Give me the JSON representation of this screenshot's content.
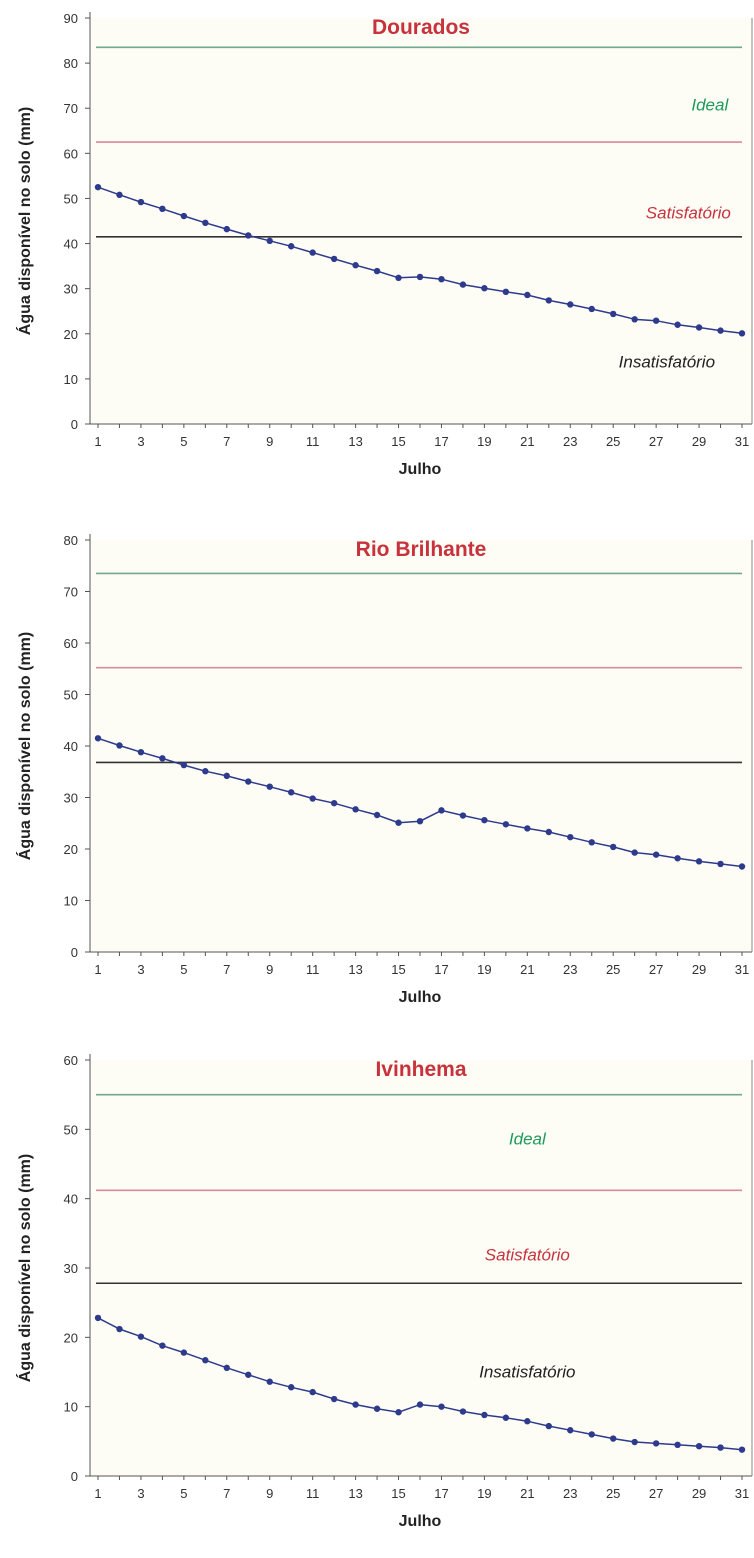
{
  "colors": {
    "title": "#c8323c",
    "ideal_line": "#6fa88a",
    "ideal_text": "#1e9a5a",
    "satisfactory_line": "#d88a9a",
    "satisfactory_text": "#c8323c",
    "insatisfactory_line": "#333333",
    "insatisfactory_text": "#222222",
    "series": "#2e3a8c",
    "plot_background": "#fdfdf6"
  },
  "chart_data": [
    {
      "type": "line",
      "title": "Dourados",
      "xlabel": "Julho",
      "ylabel": "Água disponível no solo (mm)",
      "xlim": [
        1,
        31
      ],
      "ylim": [
        0,
        90
      ],
      "yticks": [
        0,
        10,
        20,
        30,
        40,
        50,
        60,
        70,
        80,
        90
      ],
      "xticks": [
        1,
        3,
        5,
        7,
        9,
        11,
        13,
        15,
        17,
        19,
        21,
        23,
        25,
        27,
        29,
        31
      ],
      "thresholds": [
        {
          "key": "ideal",
          "value": 83.5
        },
        {
          "key": "satisfactory",
          "value": 62.5
        },
        {
          "key": "insatisfactory",
          "value": 41.5
        }
      ],
      "zone_labels": [
        {
          "key": "ideal",
          "text": "Ideal",
          "x": 29.5,
          "y": 69.5
        },
        {
          "key": "satisfactory",
          "text": "Satisfatório",
          "x": 28.5,
          "y": 45.5
        },
        {
          "key": "insatisfactory",
          "text": "Insatisfatório",
          "x": 27.5,
          "y": 12.5
        }
      ],
      "x": [
        1,
        2,
        3,
        4,
        5,
        6,
        7,
        8,
        9,
        10,
        11,
        12,
        13,
        14,
        15,
        16,
        17,
        18,
        19,
        20,
        21,
        22,
        23,
        24,
        25,
        26,
        27,
        28,
        29,
        30,
        31
      ],
      "values": [
        52.5,
        50.8,
        49.2,
        47.7,
        46.1,
        44.6,
        43.2,
        41.8,
        40.6,
        39.4,
        38.0,
        36.6,
        35.2,
        33.9,
        32.4,
        32.6,
        32.1,
        30.9,
        30.1,
        29.3,
        28.6,
        27.4,
        26.5,
        25.5,
        24.4,
        23.2,
        22.9,
        22.0,
        21.4,
        20.7,
        20.1
      ]
    },
    {
      "type": "line",
      "title": "Rio Brilhante",
      "xlabel": "Julho",
      "ylabel": "Água disponível no solo (mm)",
      "xlim": [
        1,
        31
      ],
      "ylim": [
        0,
        80
      ],
      "yticks": [
        0,
        10,
        20,
        30,
        40,
        50,
        60,
        70,
        80
      ],
      "xticks": [
        1,
        3,
        5,
        7,
        9,
        11,
        13,
        15,
        17,
        19,
        21,
        23,
        25,
        27,
        29,
        31
      ],
      "thresholds": [
        {
          "key": "ideal",
          "value": 73.5
        },
        {
          "key": "satisfactory",
          "value": 55.2
        },
        {
          "key": "insatisfactory",
          "value": 36.8
        }
      ],
      "zone_labels": [],
      "x": [
        1,
        2,
        3,
        4,
        5,
        6,
        7,
        8,
        9,
        10,
        11,
        12,
        13,
        14,
        15,
        16,
        17,
        18,
        19,
        20,
        21,
        22,
        23,
        24,
        25,
        26,
        27,
        28,
        29,
        30,
        31
      ],
      "values": [
        41.5,
        40.1,
        38.8,
        37.6,
        36.3,
        35.1,
        34.2,
        33.1,
        32.1,
        31.0,
        29.8,
        28.9,
        27.7,
        26.6,
        25.1,
        25.4,
        27.5,
        26.5,
        25.6,
        24.8,
        24.0,
        23.3,
        22.3,
        21.3,
        20.4,
        19.3,
        18.9,
        18.2,
        17.6,
        17.1,
        16.6
      ]
    },
    {
      "type": "line",
      "title": "Ivinhema",
      "xlabel": "Julho",
      "ylabel": "Água disponível no solo (mm)",
      "xlim": [
        1,
        31
      ],
      "ylim": [
        0,
        60
      ],
      "yticks": [
        0,
        10,
        20,
        30,
        40,
        50,
        60
      ],
      "xticks": [
        1,
        3,
        5,
        7,
        9,
        11,
        13,
        15,
        17,
        19,
        21,
        23,
        25,
        27,
        29,
        31
      ],
      "thresholds": [
        {
          "key": "ideal",
          "value": 55.0
        },
        {
          "key": "satisfactory",
          "value": 41.2
        },
        {
          "key": "insatisfactory",
          "value": 27.8
        }
      ],
      "zone_labels": [
        {
          "key": "ideal",
          "text": "Ideal",
          "x": 21,
          "y": 47.8
        },
        {
          "key": "satisfactory",
          "text": "Satisfatório",
          "x": 21,
          "y": 31.1
        },
        {
          "key": "insatisfactory",
          "text": "Insatisfatório",
          "x": 21,
          "y": 14.2
        }
      ],
      "x": [
        1,
        2,
        3,
        4,
        5,
        6,
        7,
        8,
        9,
        10,
        11,
        12,
        13,
        14,
        15,
        16,
        17,
        18,
        19,
        20,
        21,
        22,
        23,
        24,
        25,
        26,
        27,
        28,
        29,
        30,
        31
      ],
      "values": [
        22.8,
        21.2,
        20.1,
        18.8,
        17.8,
        16.7,
        15.6,
        14.6,
        13.6,
        12.8,
        12.1,
        11.1,
        10.3,
        9.7,
        9.2,
        10.3,
        10.0,
        9.3,
        8.8,
        8.4,
        7.9,
        7.2,
        6.6,
        6.0,
        5.4,
        4.9,
        4.7,
        4.5,
        4.3,
        4.1,
        3.8
      ]
    }
  ]
}
